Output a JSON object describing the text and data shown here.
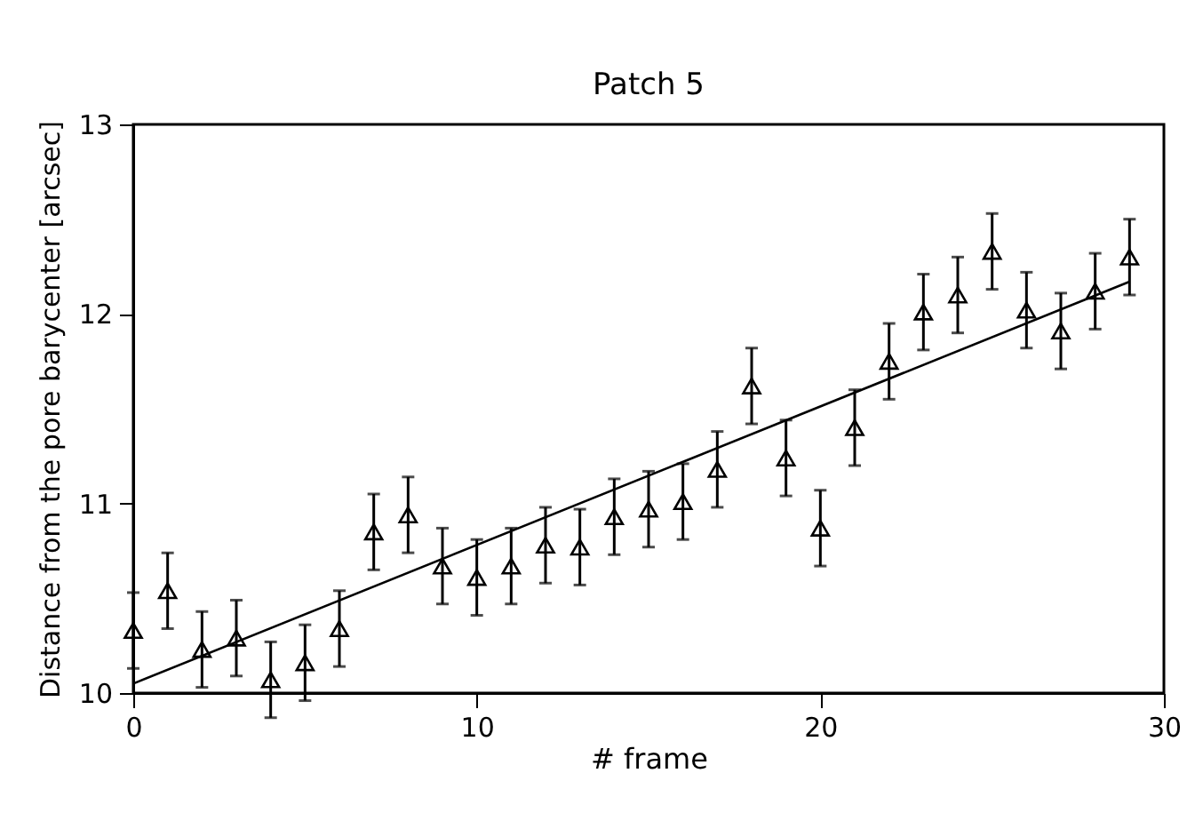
{
  "chart_data": {
    "type": "scatter",
    "title": "Patch 5",
    "xlabel": "# frame",
    "ylabel": "Distance from the pore barycenter [arcsec]",
    "x": [
      0,
      1,
      2,
      3,
      4,
      5,
      6,
      7,
      8,
      9,
      10,
      11,
      12,
      13,
      14,
      15,
      16,
      17,
      18,
      19,
      20,
      21,
      22,
      23,
      24,
      25,
      26,
      27,
      28,
      29
    ],
    "series": [
      {
        "color": "#000000",
        "values": [
          10.33,
          10.54,
          10.23,
          10.29,
          10.07,
          10.16,
          10.34,
          10.85,
          10.94,
          10.67,
          10.61,
          10.67,
          10.78,
          10.77,
          10.93,
          10.97,
          11.01,
          11.18,
          11.62,
          11.24,
          10.87,
          11.4,
          11.75,
          12.01,
          12.1,
          12.33,
          12.02,
          11.91,
          12.12,
          12.3
        ],
        "errors": [
          0.2,
          0.2,
          0.2,
          0.2,
          0.2,
          0.2,
          0.2,
          0.2,
          0.2,
          0.2,
          0.2,
          0.2,
          0.2,
          0.2,
          0.2,
          0.2,
          0.2,
          0.2,
          0.2,
          0.2,
          0.2,
          0.2,
          0.2,
          0.2,
          0.2,
          0.2,
          0.2,
          0.2,
          0.2,
          0.2
        ]
      },
      {
        "type": "line",
        "color": "#000000",
        "marker": "none",
        "x": [
          0,
          29
        ],
        "values": [
          10.05,
          12.17
        ]
      }
    ],
    "xlim": [
      0,
      30
    ],
    "xticks": [
      0,
      10,
      20,
      30
    ],
    "ylim": [
      10,
      13
    ],
    "yticks": [
      10,
      11,
      12,
      13
    ],
    "grid": false,
    "marker": "triangle"
  }
}
